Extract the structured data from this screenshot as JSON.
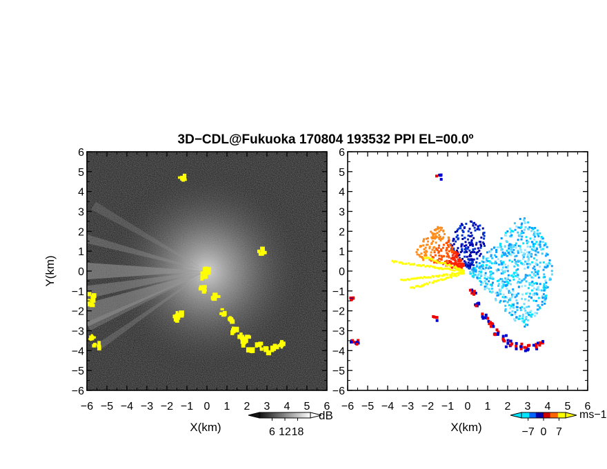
{
  "title": "3D−CDL@Fukuoka 170804 193532 PPI EL=00.0º",
  "colors": {
    "text": "#000000",
    "frame": "#000000",
    "echo_yellow": "#ffff00",
    "background_left": "#141414",
    "background_right": "#ffffff"
  },
  "chart_data": [
    {
      "type": "heatmap",
      "name": "reflectivity-ppi",
      "title": "",
      "xlabel": "X(km)",
      "ylabel": "Y(km)",
      "xlim": [
        -6,
        6
      ],
      "ylim": [
        -6,
        6
      ],
      "xticks": [
        -6,
        -5,
        -4,
        -3,
        -2,
        -1,
        0,
        1,
        2,
        3,
        4,
        5,
        6
      ],
      "yticks": [
        -6,
        -5,
        -4,
        -3,
        -2,
        -1,
        0,
        1,
        2,
        3,
        4,
        5,
        6
      ],
      "tick_labels": [
        "−6",
        "−5",
        "−4",
        "−3",
        "−2",
        "−1",
        "0",
        "1",
        "2",
        "3",
        "4",
        "5",
        "6"
      ],
      "colorbar": {
        "unit": "dB",
        "tick_values": [
          6,
          12,
          18
        ],
        "tick_labels": [
          "6",
          "12",
          "18"
        ],
        "range": [
          0,
          24
        ],
        "colors": [
          "#000000",
          "#ffffff"
        ]
      }
    },
    {
      "type": "heatmap",
      "name": "doppler-velocity-ppi",
      "title": "",
      "xlabel": "X(km)",
      "ylabel": "",
      "xlim": [
        -6,
        6
      ],
      "ylim": [
        -6,
        6
      ],
      "xticks": [
        -6,
        -5,
        -4,
        -3,
        -2,
        -1,
        0,
        1,
        2,
        3,
        4,
        5,
        6
      ],
      "yticks": [
        -6,
        -5,
        -4,
        -3,
        -2,
        -1,
        0,
        1,
        2,
        3,
        4,
        5,
        6
      ],
      "tick_labels": [
        "−6",
        "−5",
        "−4",
        "−3",
        "−2",
        "−1",
        "0",
        "1",
        "2",
        "3",
        "4",
        "5",
        "6"
      ],
      "colorbar": {
        "unit": "ms−1",
        "tick_values": [
          -7,
          0,
          7
        ],
        "tick_labels": [
          "−7",
          "0",
          "7"
        ],
        "range": [
          -10,
          10
        ],
        "colors": [
          "#00e5ff",
          "#0066ff",
          "#0000aa",
          "#cc0000",
          "#ff6600",
          "#ffff00"
        ]
      }
    }
  ]
}
